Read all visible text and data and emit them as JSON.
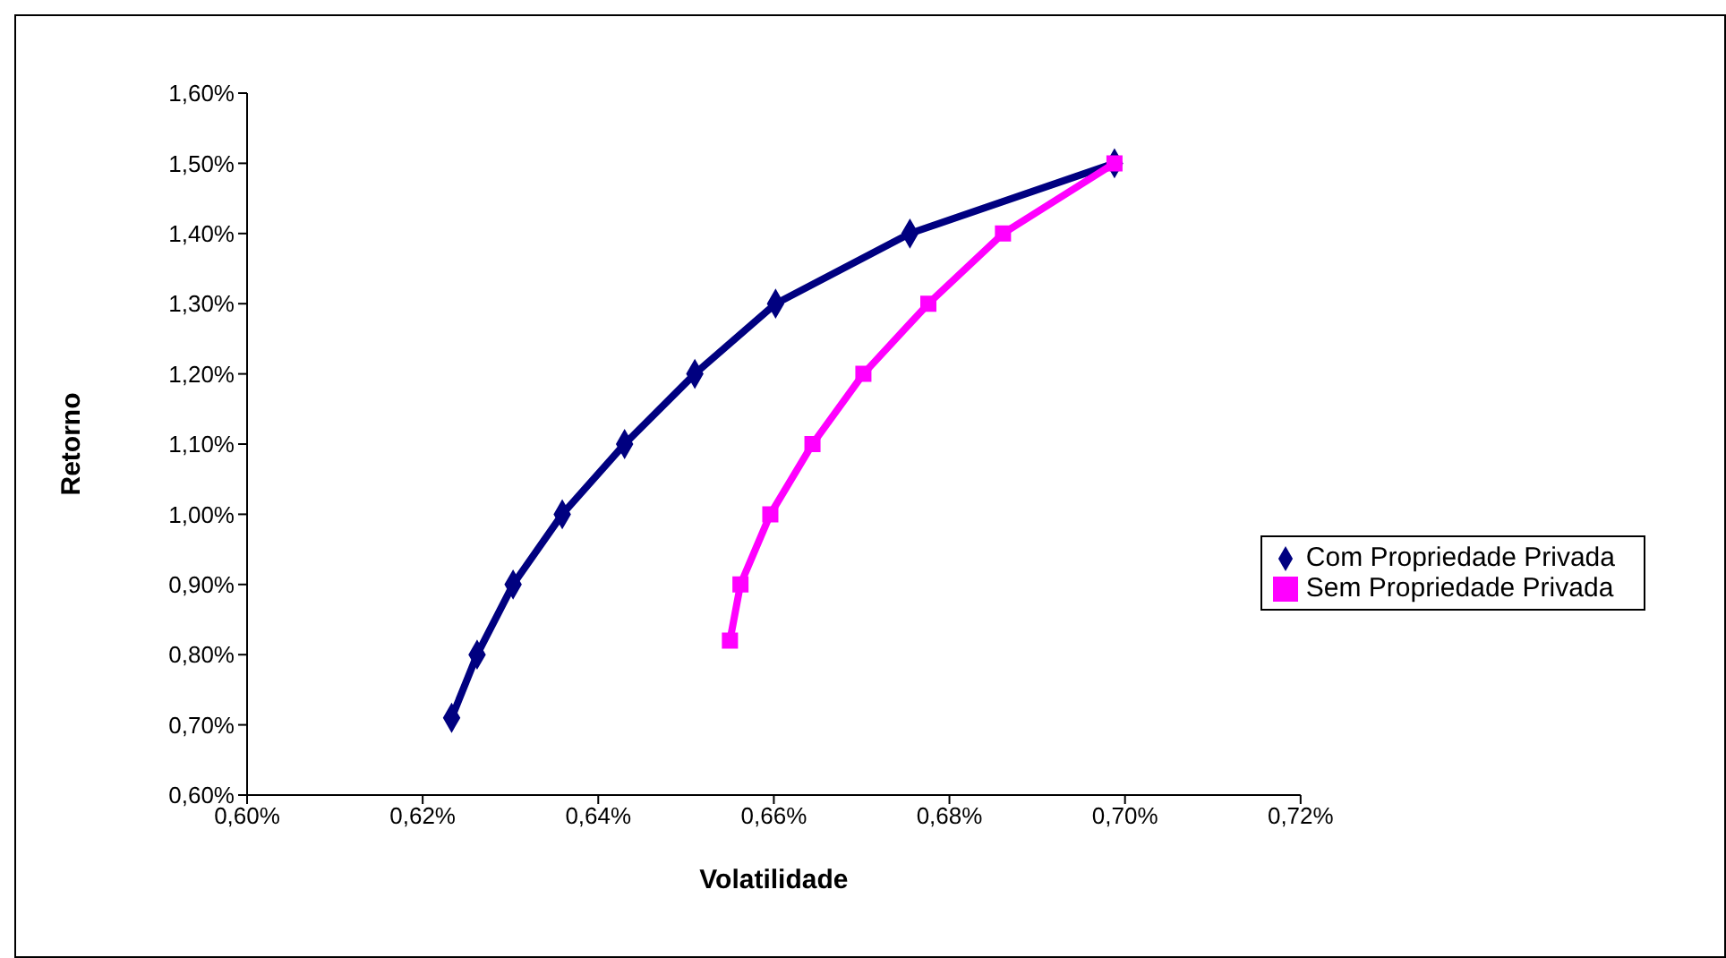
{
  "chart_data": {
    "type": "line",
    "xlabel": "Volatilidade",
    "ylabel": "Retorno",
    "xlim": [
      0.6,
      0.72
    ],
    "xticks": [
      {
        "value": 0.6,
        "label": "0,60%"
      },
      {
        "value": 0.62,
        "label": "0,62%"
      },
      {
        "value": 0.64,
        "label": "0,64%"
      },
      {
        "value": 0.66,
        "label": "0,66%"
      },
      {
        "value": 0.68,
        "label": "0,68%"
      },
      {
        "value": 0.7,
        "label": "0,70%"
      },
      {
        "value": 0.72,
        "label": "0,72%"
      }
    ],
    "ylim": [
      0.6,
      1.6
    ],
    "yticks": [
      {
        "value": 0.6,
        "label": "0,60%"
      },
      {
        "value": 0.7,
        "label": "0,70%"
      },
      {
        "value": 0.8,
        "label": "0,80%"
      },
      {
        "value": 0.9,
        "label": "0,90%"
      },
      {
        "value": 1.0,
        "label": "1,00%"
      },
      {
        "value": 1.1,
        "label": "1,10%"
      },
      {
        "value": 1.2,
        "label": "1,20%"
      },
      {
        "value": 1.3,
        "label": "1,30%"
      },
      {
        "value": 1.4,
        "label": "1,40%"
      },
      {
        "value": 1.5,
        "label": "1,50%"
      },
      {
        "value": 1.6,
        "label": "1,60%"
      }
    ],
    "grid": false,
    "legend": "right",
    "line_style": "solid",
    "series": [
      {
        "name": "Com Propriedade Privada",
        "color": "#000080",
        "marker": "diamond",
        "x": [
          0.6233,
          0.6262,
          0.6303,
          0.6359,
          0.643,
          0.651,
          0.6602,
          0.6755,
          0.6988
        ],
        "values": [
          0.71,
          0.8,
          0.9,
          1.0,
          1.1,
          1.2,
          1.3,
          1.4,
          1.5
        ]
      },
      {
        "name": "Sem Propriedade Privada",
        "color": "#ff00ff",
        "marker": "square",
        "x": [
          0.655,
          0.6562,
          0.6596,
          0.6644,
          0.6702,
          0.6776,
          0.6861,
          0.6988
        ],
        "values": [
          0.82,
          0.9,
          1.0,
          1.1,
          1.2,
          1.3,
          1.4,
          1.5
        ]
      }
    ]
  }
}
